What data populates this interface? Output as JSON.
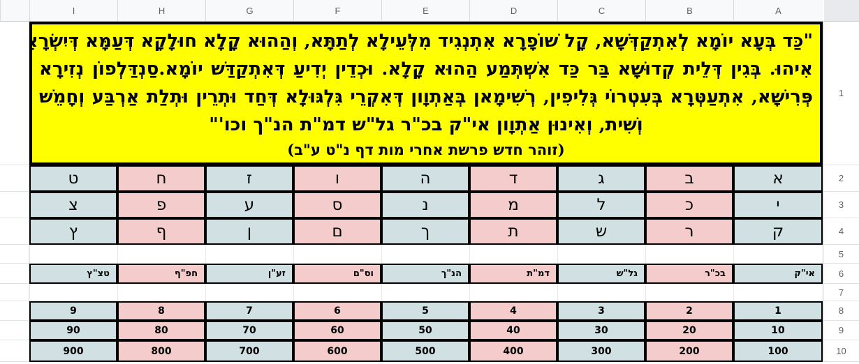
{
  "sheet": {
    "column_headers": [
      "A",
      "B",
      "C",
      "D",
      "E",
      "F",
      "G",
      "H",
      "I"
    ],
    "row_headers": [
      "1",
      "2",
      "3",
      "4",
      "5",
      "6",
      "7",
      "8",
      "9",
      "10"
    ],
    "quote": {
      "lines": [
        "\"כַּד בְּעָא יוֹמָא לְאִתְקַדְּשָׁא, קָל שׁוֹפָרָא אִתְנְגִיד מִלְּעֵילָא לְתַתָּא, וְהַהוּא קָלָא חוּלָקָא דְּעַמָּא דְּיִשְׂרָאֵל",
        "אִיהוּ. בְּגִין דְּלֵית קְדוּשָׁא בַּר כַּד אִשְׁתְּמַע הַהוּא קָלָא. וּכְדֵין יְדִיעַ דְּאִתְקַדַּשׁ יוֹמָא.סַנְדַּלְפוֹן נְזִירָא",
        "פְּרִישָׁא, אִתְעַטְּרָא בְּעִטְרוֹי גְּלִיפִין, רְשִׁימָאן בְּאַתְוָון דְּאִקְרֵי גִּלְגּוּלָא דְּחַד וּתְרֵין וּתְלַת אַרְבַּע וְחָמֵשׁ",
        "וְשִׁית, וְאִינוּן אַתְוָון אי\"ק בכ\"ר גל\"ש דמ\"ת הנ\"ך וכו'\""
      ],
      "citation": "(זוהר חדש פרשת אחרי מות דף נ\"ט ע\"ב)"
    },
    "letters_units": [
      "א",
      "ב",
      "ג",
      "ד",
      "ה",
      "ו",
      "ז",
      "ח",
      "ט"
    ],
    "letters_tens": [
      "י",
      "כ",
      "ל",
      "מ",
      "נ",
      "ס",
      "ע",
      "פ",
      "צ"
    ],
    "letters_hundreds": [
      "ק",
      "ר",
      "ש",
      "ת",
      "ך",
      "ם",
      "ן",
      "ף",
      "ץ"
    ],
    "letter_groups": [
      "אי\"ק",
      "בכ\"ר",
      "גל\"ש",
      "דמ\"ת",
      "הנ\"ך",
      "וס\"ם",
      "זע\"ן",
      "חפ\"ף",
      "טצ\"ץ"
    ],
    "numbers_units": [
      "1",
      "2",
      "3",
      "4",
      "5",
      "6",
      "7",
      "8",
      "9"
    ],
    "numbers_tens": [
      "10",
      "20",
      "30",
      "40",
      "50",
      "60",
      "70",
      "80",
      "90"
    ],
    "numbers_hundreds": [
      "100",
      "200",
      "300",
      "400",
      "500",
      "600",
      "700",
      "800",
      "900"
    ],
    "colors": {
      "highlight_yellow": "#ffff00",
      "cell_light_blue": "#d0e0e3",
      "cell_pink": "#f4cccc",
      "border_black": "#000000"
    }
  }
}
